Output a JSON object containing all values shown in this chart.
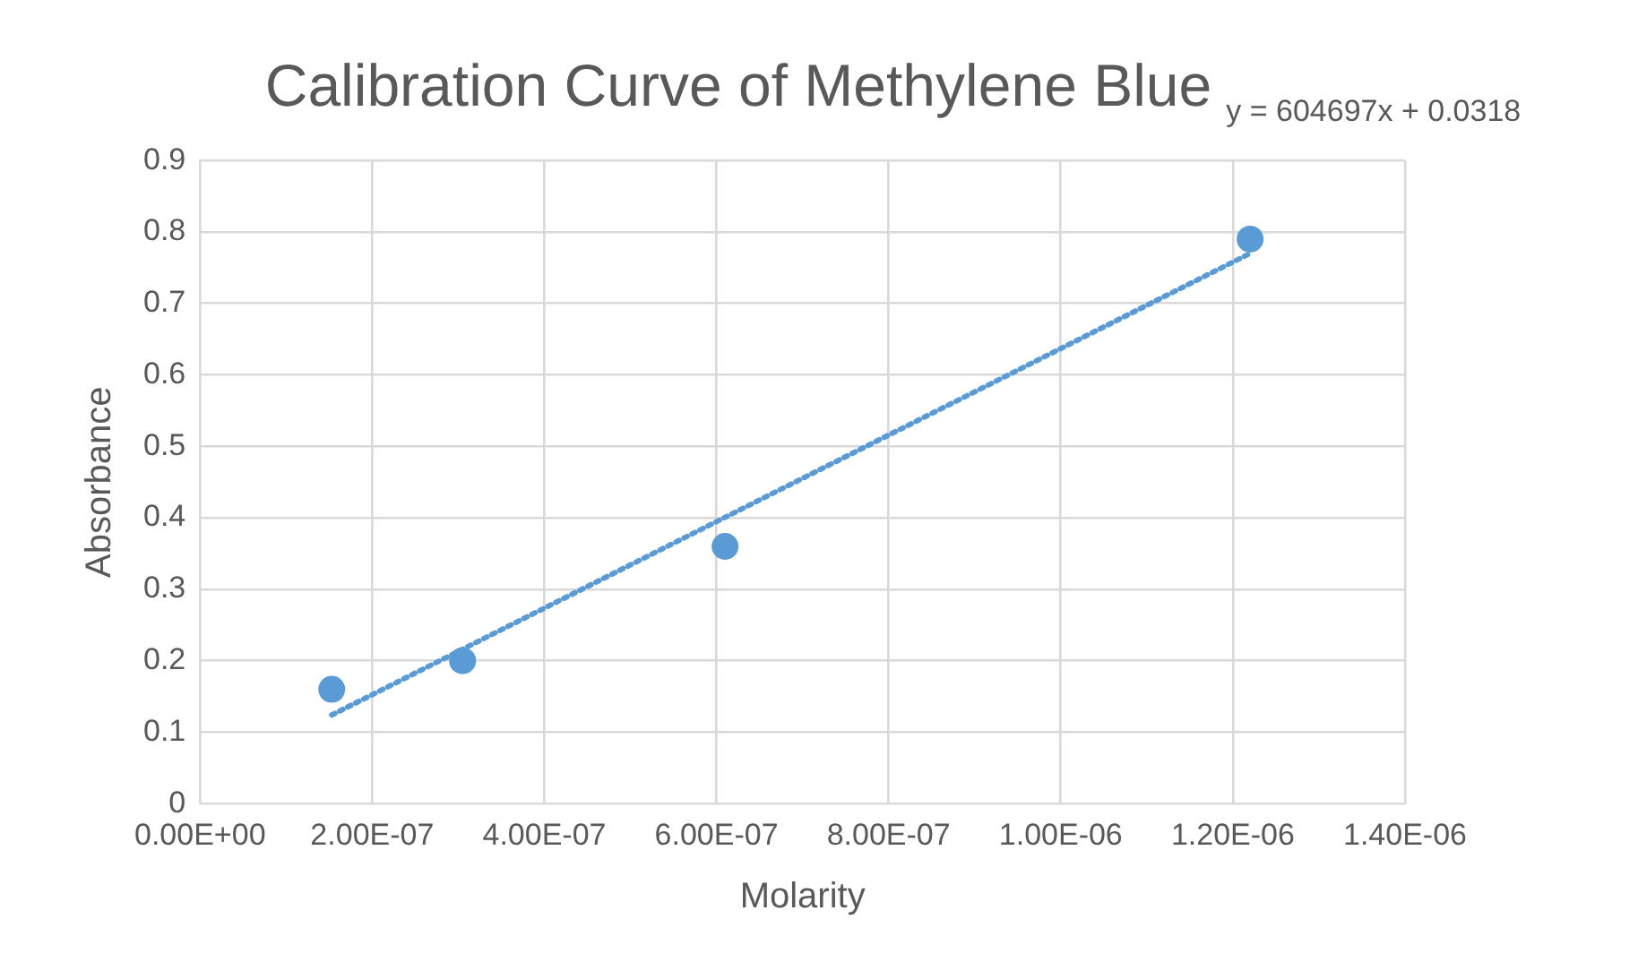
{
  "chart_data": {
    "type": "scatter",
    "title": "Calibration Curve of Methylene Blue",
    "xlabel": "Molarity",
    "ylabel": "Absorbance",
    "annotations": [
      "y = 604697x + 0.0318"
    ],
    "series": [
      {
        "type": "scatter",
        "color": "#5b9bd5",
        "marker": "circle",
        "x": [
          1.53e-07,
          3.05e-07,
          6.1e-07,
          1.22e-06
        ],
        "values": [
          0.16,
          0.2,
          0.36,
          0.79
        ]
      },
      {
        "type": "line",
        "color": "#5b9bd5",
        "marker": "none",
        "line_style": "dotted",
        "x": [
          1.53e-07,
          1.22e-06
        ],
        "values": [
          0.124,
          0.77
        ]
      }
    ],
    "xlim": [
      0,
      1.4e-06
    ],
    "xticks": [
      {
        "value": 0,
        "label": "0.00E+00"
      },
      {
        "value": 2e-07,
        "label": "2.00E-07"
      },
      {
        "value": 4e-07,
        "label": "4.00E-07"
      },
      {
        "value": 6e-07,
        "label": "6.00E-07"
      },
      {
        "value": 8e-07,
        "label": "8.00E-07"
      },
      {
        "value": 1e-06,
        "label": "1.00E-06"
      },
      {
        "value": 1.2e-06,
        "label": "1.20E-06"
      },
      {
        "value": 1.4e-06,
        "label": "1.40E-06"
      }
    ],
    "ylim": [
      0,
      0.9
    ],
    "yticks": [
      0,
      0.1,
      0.2,
      0.3,
      0.4,
      0.5,
      0.6,
      0.7,
      0.8,
      0.9
    ],
    "grid": true,
    "legend": false
  }
}
